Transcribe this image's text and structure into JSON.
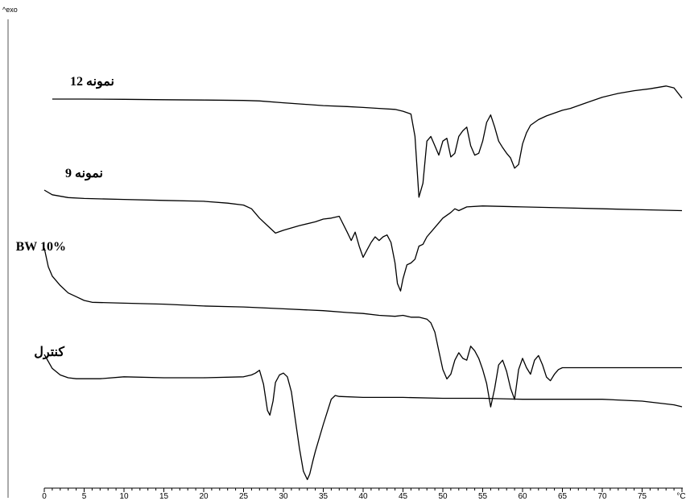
{
  "chart_data": {
    "type": "line",
    "corner_label": "^exo",
    "xlabel": "",
    "ylabel": "",
    "xlim": [
      0,
      80
    ],
    "x_unit": "°C",
    "x_ticks": [
      "0",
      "5",
      "10",
      "15",
      "20",
      "25",
      "30",
      "35",
      "40",
      "45",
      "50",
      "55",
      "60",
      "65",
      "70",
      "75"
    ],
    "grid": false,
    "legend": "none",
    "series": [
      {
        "name": "نمونه 12",
        "color": "#000000",
        "x": [
          1,
          5,
          10,
          15,
          20,
          25,
          27,
          30,
          35,
          38,
          40,
          42,
          44,
          45,
          46,
          46.5,
          47,
          47.5,
          48,
          48.5,
          49,
          49.5,
          50,
          50.5,
          51,
          51.5,
          52,
          52.5,
          53,
          53.5,
          54,
          54.5,
          55,
          55.5,
          56,
          56.5,
          57,
          57.5,
          58,
          58.5,
          59,
          59.5,
          60,
          60.5,
          61,
          62,
          63,
          64,
          65,
          66,
          68,
          70,
          72,
          74,
          76,
          78,
          79,
          80
        ],
        "y": [
          0,
          0,
          -0.3,
          -0.7,
          -1,
          -1.5,
          -2,
          -4,
          -7,
          -8,
          -9,
          -10,
          -11,
          -13,
          -16,
          -40,
          -105,
          -90,
          -45,
          -40,
          -50,
          -60,
          -45,
          -42,
          -62,
          -58,
          -40,
          -34,
          -30,
          -50,
          -60,
          -58,
          -45,
          -25,
          -17,
          -30,
          -45,
          -52,
          -58,
          -63,
          -74,
          -70,
          -48,
          -36,
          -28,
          -22,
          -18,
          -15,
          -12,
          -10,
          -4,
          2,
          6,
          9,
          11,
          14,
          12,
          1
        ]
      },
      {
        "name": "نمونه 9",
        "color": "#000000",
        "x": [
          0,
          1,
          3,
          5,
          10,
          15,
          20,
          23,
          25,
          26,
          27,
          28,
          29,
          30,
          32,
          34,
          35,
          36,
          37,
          38,
          38.5,
          39,
          39.5,
          40,
          40.5,
          41,
          41.5,
          42,
          42.5,
          43,
          43.5,
          44,
          44.3,
          44.7,
          45,
          45.5,
          46,
          46.5,
          47,
          47.5,
          48,
          49,
          50,
          51,
          51.5,
          52,
          53,
          55,
          60,
          65,
          70,
          75,
          80
        ],
        "y": [
          0,
          -5,
          -8,
          -9,
          -10,
          -11,
          -12,
          -14,
          -16,
          -20,
          -30,
          -38,
          -46,
          -43,
          -38,
          -34,
          -31,
          -30,
          -28,
          -45,
          -54,
          -45,
          -60,
          -72,
          -64,
          -56,
          -50,
          -54,
          -50,
          -48,
          -56,
          -78,
          -100,
          -108,
          -95,
          -80,
          -78,
          -74,
          -60,
          -58,
          -50,
          -40,
          -30,
          -24,
          -20,
          -22,
          -18,
          -17,
          -18,
          -19,
          -20,
          -21,
          -22
        ]
      },
      {
        "name": "BW 10%",
        "color": "#000000",
        "x": [
          0,
          0.5,
          1,
          2,
          3,
          4,
          5,
          6,
          10,
          15,
          20,
          25,
          30,
          35,
          38,
          40,
          42,
          44,
          45,
          46,
          47,
          48,
          48.5,
          49,
          49.5,
          50,
          50.5,
          51,
          51.5,
          52,
          52.5,
          53,
          53.5,
          54,
          54.5,
          55,
          55.5,
          56,
          56.5,
          57,
          57.5,
          58,
          58.5,
          59,
          59.5,
          60,
          60.5,
          61,
          61.5,
          62,
          62.5,
          63,
          63.5,
          64,
          64.5,
          65,
          66,
          70,
          75,
          80
        ],
        "y": [
          0,
          -20,
          -30,
          -40,
          -48,
          -52,
          -56,
          -58,
          -59,
          -60,
          -62,
          -63,
          -65,
          -67,
          -69,
          -70,
          -72,
          -73,
          -72,
          -74,
          -74,
          -76,
          -80,
          -90,
          -110,
          -130,
          -140,
          -135,
          -120,
          -112,
          -118,
          -120,
          -105,
          -110,
          -118,
          -130,
          -145,
          -170,
          -150,
          -125,
          -120,
          -132,
          -150,
          -162,
          -130,
          -118,
          -128,
          -135,
          -120,
          -115,
          -125,
          -138,
          -142,
          -135,
          -130,
          -128,
          -128,
          -128,
          -128,
          -128
        ]
      },
      {
        "name": "كنترل",
        "color": "#000000",
        "x": [
          0,
          1,
          2,
          3,
          4,
          5,
          7,
          10,
          15,
          20,
          25,
          26,
          26.5,
          27,
          27.5,
          28,
          28.3,
          28.7,
          29,
          29.5,
          30,
          30.5,
          31,
          31.5,
          32,
          32.5,
          33,
          33.3,
          33.7,
          34,
          35,
          36,
          36.5,
          37,
          40,
          45,
          50,
          55,
          60,
          65,
          70,
          75,
          79,
          80
        ],
        "y": [
          0,
          -15,
          -22,
          -25,
          -26,
          -26,
          -26,
          -24,
          -25,
          -25,
          -24,
          -22,
          -20,
          -17,
          -32,
          -60,
          -65,
          -50,
          -30,
          -22,
          -20,
          -24,
          -40,
          -70,
          -100,
          -125,
          -134,
          -128,
          -114,
          -104,
          -75,
          -48,
          -44,
          -45,
          -46,
          -46,
          -47,
          -47,
          -48,
          -48,
          -48,
          -50,
          -54,
          -56
        ]
      }
    ]
  }
}
